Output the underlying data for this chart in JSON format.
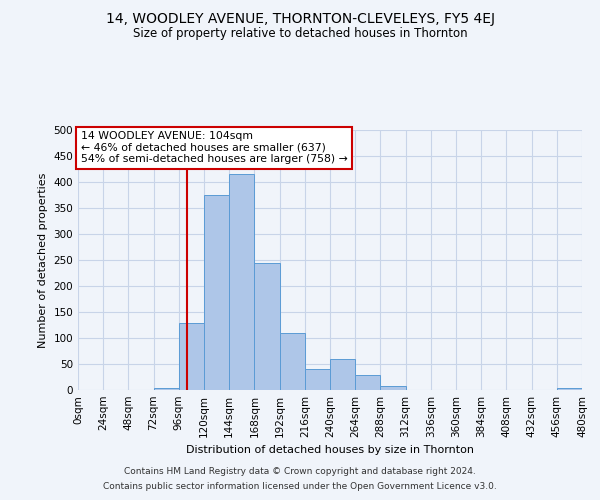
{
  "title": "14, WOODLEY AVENUE, THORNTON-CLEVELEYS, FY5 4EJ",
  "subtitle": "Size of property relative to detached houses in Thornton",
  "xlabel": "Distribution of detached houses by size in Thornton",
  "ylabel": "Number of detached properties",
  "footnote1": "Contains HM Land Registry data © Crown copyright and database right 2024.",
  "footnote2": "Contains public sector information licensed under the Open Government Licence v3.0.",
  "bar_values": [
    0,
    0,
    0,
    3,
    128,
    375,
    415,
    245,
    110,
    40,
    60,
    28,
    7,
    0,
    0,
    0,
    0,
    0,
    0,
    3
  ],
  "bin_edges": [
    0,
    24,
    48,
    72,
    96,
    120,
    144,
    168,
    192,
    216,
    240,
    264,
    288,
    312,
    336,
    360,
    384,
    408,
    432,
    456,
    480
  ],
  "xlabels": [
    "0sqm",
    "24sqm",
    "48sqm",
    "72sqm",
    "96sqm",
    "120sqm",
    "144sqm",
    "168sqm",
    "192sqm",
    "216sqm",
    "240sqm",
    "264sqm",
    "288sqm",
    "312sqm",
    "336sqm",
    "360sqm",
    "384sqm",
    "408sqm",
    "432sqm",
    "456sqm",
    "480sqm"
  ],
  "bar_color": "#aec6e8",
  "bar_edge_color": "#5b9bd5",
  "property_size": 104,
  "vline_color": "#cc0000",
  "annotation_line1": "14 WOODLEY AVENUE: 104sqm",
  "annotation_line2": "← 46% of detached houses are smaller (637)",
  "annotation_line3": "54% of semi-detached houses are larger (758) →",
  "annotation_box_color": "#ffffff",
  "annotation_box_edge": "#cc0000",
  "ylim": [
    0,
    500
  ],
  "yticks": [
    0,
    50,
    100,
    150,
    200,
    250,
    300,
    350,
    400,
    450,
    500
  ],
  "background_color": "#f0f4fa",
  "grid_color": "#c8d4e8",
  "title_fontsize": 10,
  "subtitle_fontsize": 8.5,
  "axis_fontsize": 8,
  "tick_fontsize": 7.5,
  "footnote_fontsize": 6.5
}
